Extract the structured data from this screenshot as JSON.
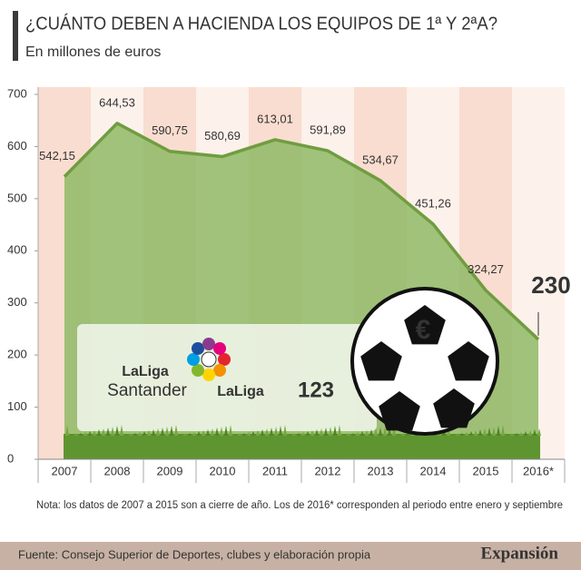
{
  "chart_data": {
    "type": "area",
    "title": "¿CUÁNTO DEBEN A HACIENDA LOS EQUIPOS DE 1ª Y 2ªA?",
    "subtitle": "En millones de euros",
    "categories": [
      "2007",
      "2008",
      "2009",
      "2010",
      "2011",
      "2012",
      "2013",
      "2014",
      "2015",
      "2016*"
    ],
    "values": [
      542.15,
      644.53,
      590.75,
      580.69,
      613.01,
      591.89,
      534.67,
      451.26,
      324.27,
      230
    ],
    "value_labels": [
      "542,15",
      "644,53",
      "590,75",
      "580,69",
      "613,01",
      "591,89",
      "534,67",
      "451,26",
      "324,27",
      "230"
    ],
    "color": "#6f9d3f",
    "ylim": [
      0,
      700
    ],
    "yticks": [
      0,
      100,
      200,
      300,
      400,
      500,
      600,
      700
    ],
    "grid": false,
    "note": "Nota: los datos de 2007 a 2015 son a cierre de año. Los de 2016* corresponden al periodo entre enero y septiembre",
    "source": "Fuente: Consejo Superior de Deportes, clubes y elaboración propia",
    "brand": "Expansión",
    "logos": {
      "liga1_a": "LaLiga",
      "liga1_b": "Santander",
      "liga2_a": "LaLiga",
      "liga2_b": "123",
      "ball": "€"
    }
  }
}
